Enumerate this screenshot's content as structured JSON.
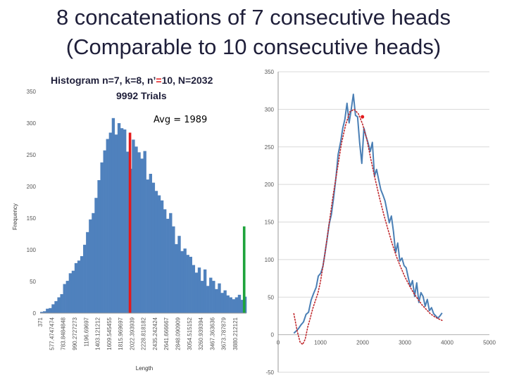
{
  "slide": {
    "title_line1": "8 concatenations of 7 consecutive heads",
    "title_line2": "(Comparable to 10 consecutive heads)"
  },
  "colors": {
    "bar": "#4f81bd",
    "avg_line": "#e31a1c",
    "end_line": "#1ea33c",
    "series_line": "#4a7fb5",
    "trend_dotted": "#c0282d",
    "grid": "#d9d9d9"
  },
  "chart_data": [
    {
      "type": "bar",
      "title_prefix": "Histogram ",
      "title_params_a": "n=7, k=8, n’",
      "title_params_eq": "=",
      "title_params_b": "10, N=2032",
      "title_line2": "9992 Trials",
      "annotation": "Avg = 1989",
      "avg_value": 1989,
      "xlabel": "Length",
      "ylabel": "Frequency",
      "ylim": [
        0,
        350
      ],
      "yticks": [
        0,
        50,
        100,
        150,
        200,
        250,
        300,
        350
      ],
      "grid": false,
      "xtick_labels": [
        "371",
        "577.4747474",
        "783.8484848",
        "990.2727273",
        "1196.69697",
        "1403.121212",
        "1609.545455",
        "1815.969697",
        "2022.393939",
        "2228.818182",
        "2435.242424",
        "2641.666667",
        "2848.090909",
        "3054.515152",
        "3260.939394",
        "3467.363636",
        "3673.787879",
        "3880.212121"
      ],
      "values": [
        2,
        3,
        7,
        8,
        14,
        19,
        25,
        30,
        46,
        51,
        63,
        67,
        79,
        83,
        90,
        108,
        128,
        148,
        158,
        182,
        210,
        238,
        257,
        275,
        285,
        308,
        282,
        300,
        292,
        290,
        255,
        228,
        274,
        263,
        254,
        244,
        256,
        211,
        220,
        206,
        193,
        186,
        178,
        164,
        149,
        158,
        137,
        109,
        122,
        98,
        102,
        92,
        89,
        76,
        64,
        72,
        51,
        69,
        43,
        56,
        51,
        38,
        47,
        32,
        36,
        28,
        25,
        22,
        25,
        29,
        21,
        26
      ],
      "end_marker": {
        "category_index": 71,
        "value": 137
      }
    },
    {
      "type": "line",
      "xlim": [
        0,
        5000
      ],
      "ylim": [
        -50,
        350
      ],
      "xticks": [
        0,
        1000,
        2000,
        3000,
        4000,
        5000
      ],
      "yticks": [
        -50,
        0,
        50,
        100,
        150,
        200,
        250,
        300,
        350
      ],
      "grid": "horizontal",
      "series": [
        {
          "style": "solid",
          "x": [
            371,
            430,
            480,
            540,
            600,
            660,
            720,
            780,
            840,
            900,
            950,
            1010,
            1060,
            1110,
            1160,
            1210,
            1260,
            1310,
            1370,
            1420,
            1480,
            1530,
            1580,
            1630,
            1680,
            1730,
            1780,
            1830,
            1880,
            1930,
            1980,
            2030,
            2080,
            2130,
            2180,
            2230,
            2280,
            2330,
            2380,
            2430,
            2480,
            2530,
            2580,
            2630,
            2680,
            2730,
            2780,
            2830,
            2880,
            2930,
            2980,
            3030,
            3080,
            3130,
            3180,
            3230,
            3280,
            3330,
            3380,
            3430,
            3480,
            3530,
            3580,
            3630,
            3680,
            3730,
            3780,
            3830,
            3880
          ],
          "y": [
            2,
            5,
            8,
            13,
            17,
            27,
            30,
            46,
            55,
            63,
            78,
            82,
            91,
            109,
            128,
            148,
            160,
            181,
            210,
            240,
            257,
            275,
            287,
            308,
            282,
            300,
            320,
            292,
            290,
            255,
            228,
            275,
            264,
            255,
            244,
            256,
            211,
            220,
            206,
            193,
            186,
            178,
            164,
            149,
            158,
            137,
            109,
            122,
            98,
            102,
            92,
            89,
            76,
            64,
            72,
            51,
            69,
            43,
            56,
            51,
            38,
            47,
            32,
            36,
            28,
            25,
            22,
            25,
            29
          ]
        },
        {
          "style": "dotted",
          "x": [
            371,
            450,
            520,
            580,
            640,
            700,
            760,
            820,
            880,
            940,
            1000,
            1100,
            1200,
            1300,
            1400,
            1500,
            1600,
            1700,
            1800,
            1900,
            2000,
            2100,
            2200,
            2300,
            2400,
            2500,
            2600,
            2700,
            2800,
            2900,
            3000,
            3100,
            3200,
            3300,
            3400,
            3500,
            3600,
            3700,
            3800,
            3880
          ],
          "y": [
            28,
            5,
            -10,
            -13,
            -6,
            10,
            22,
            35,
            45,
            55,
            70,
            105,
            145,
            185,
            220,
            255,
            280,
            297,
            300,
            294,
            280,
            260,
            232,
            206,
            182,
            160,
            140,
            121,
            104,
            90,
            77,
            66,
            56,
            48,
            40,
            34,
            28,
            24,
            21,
            19
          ]
        }
      ],
      "marker": {
        "x": 1995,
        "y": 290
      }
    }
  ]
}
